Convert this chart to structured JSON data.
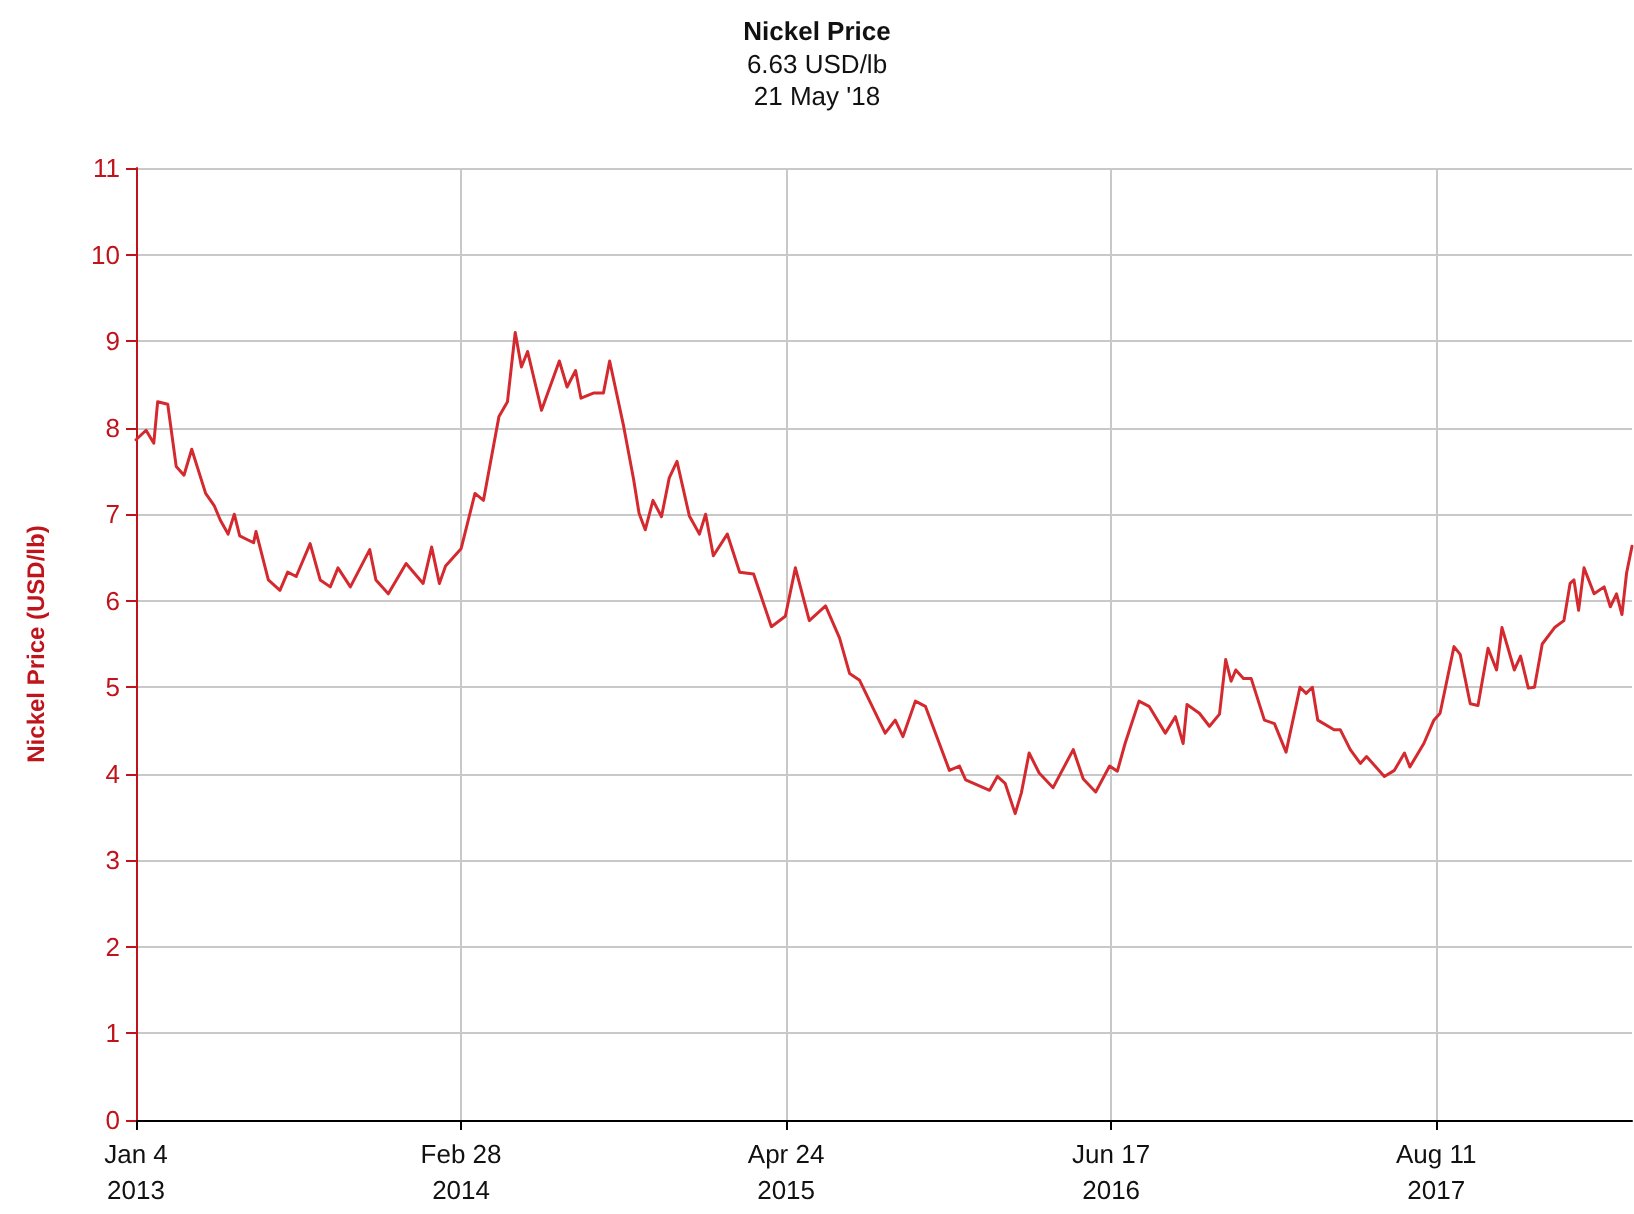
{
  "chart_data": {
    "type": "line",
    "title": "Nickel Price",
    "subtitle": "6.63 USD/lb\n21 May '18",
    "ylabel": "Nickel Price (USD/lb)",
    "xlim": [
      "2013-01-04",
      "2018-04-21"
    ],
    "xticks": [
      {
        "value": "2013-01-04",
        "label": "Jan 4\n2013"
      },
      {
        "value": "2014-02-28",
        "label": "Feb 28\n2014"
      },
      {
        "value": "2015-04-24",
        "label": "Apr 24\n2015"
      },
      {
        "value": "2016-06-17",
        "label": "Jun 17\n2016"
      },
      {
        "value": "2017-08-11",
        "label": "Aug 11\n2017"
      }
    ],
    "ylim": [
      0,
      11
    ],
    "yticks": [
      0,
      1,
      2,
      3,
      4,
      5,
      6,
      7,
      8,
      9,
      10,
      11
    ],
    "grid": true,
    "marker": "none",
    "line_style": "solid",
    "x": [
      "2013-01-04",
      "2013-01-17",
      "2013-01-27",
      "2013-02-01",
      "2013-02-14",
      "2013-02-25",
      "2013-03-07",
      "2013-03-17",
      "2013-04-04",
      "2013-04-15",
      "2013-04-23",
      "2013-05-03",
      "2013-05-11",
      "2013-05-18",
      "2013-06-05",
      "2013-06-08",
      "2013-06-24",
      "2013-07-09",
      "2013-07-19",
      "2013-07-30",
      "2013-08-17",
      "2013-08-30",
      "2013-09-12",
      "2013-09-22",
      "2013-10-08",
      "2013-11-02",
      "2013-11-10",
      "2013-11-26",
      "2013-12-19",
      "2014-01-10",
      "2014-01-21",
      "2014-01-31",
      "2014-02-08",
      "2014-02-28",
      "2014-03-18",
      "2014-03-29",
      "2014-04-18",
      "2014-04-29",
      "2014-05-09",
      "2014-05-17",
      "2014-05-25",
      "2014-06-12",
      "2014-07-05",
      "2014-07-15",
      "2014-07-26",
      "2014-08-02",
      "2014-08-18",
      "2014-08-31",
      "2014-09-08",
      "2014-09-26",
      "2014-10-09",
      "2014-10-16",
      "2014-10-24",
      "2014-11-03",
      "2014-11-14",
      "2014-11-24",
      "2014-12-04",
      "2014-12-20",
      "2015-01-02",
      "2015-01-10",
      "2015-01-20",
      "2015-02-07",
      "2015-02-23",
      "2015-03-13",
      "2015-04-05",
      "2015-04-23",
      "2015-05-06",
      "2015-05-24",
      "2015-06-14",
      "2015-07-02",
      "2015-07-15",
      "2015-07-28",
      "2015-08-30",
      "2015-09-12",
      "2015-09-22",
      "2015-10-08",
      "2015-10-21",
      "2015-11-21",
      "2015-12-04",
      "2015-12-12",
      "2016-01-12",
      "2016-01-22",
      "2016-02-01",
      "2016-02-14",
      "2016-02-22",
      "2016-03-03",
      "2016-03-16",
      "2016-04-03",
      "2016-04-29",
      "2016-05-12",
      "2016-05-28",
      "2016-06-15",
      "2016-06-25",
      "2016-07-05",
      "2016-07-23",
      "2016-08-05",
      "2016-08-26",
      "2016-09-08",
      "2016-09-18",
      "2016-09-23",
      "2016-10-09",
      "2016-10-22",
      "2016-11-04",
      "2016-11-12",
      "2016-11-19",
      "2016-11-25",
      "2016-12-05",
      "2016-12-15",
      "2017-01-01",
      "2017-01-14",
      "2017-01-29",
      "2017-02-16",
      "2017-02-24",
      "2017-03-04",
      "2017-03-11",
      "2017-04-01",
      "2017-04-09",
      "2017-04-22",
      "2017-05-05",
      "2017-05-13",
      "2017-06-05",
      "2017-06-18",
      "2017-07-01",
      "2017-07-08",
      "2017-07-26",
      "2017-08-08",
      "2017-08-16",
      "2017-09-03",
      "2017-09-11",
      "2017-09-24",
      "2017-10-04",
      "2017-10-17",
      "2017-10-28",
      "2017-11-04",
      "2017-11-20",
      "2017-11-28",
      "2017-12-08",
      "2017-12-16",
      "2017-12-26",
      "2018-01-11",
      "2018-01-23",
      "2018-01-31",
      "2018-02-05",
      "2018-02-11",
      "2018-02-18",
      "2018-03-03",
      "2018-03-16",
      "2018-03-24",
      "2018-04-01",
      "2018-04-08",
      "2018-04-14",
      "2018-04-21"
    ],
    "series": [
      {
        "color": "#d42a2f",
        "values": [
          7.86,
          7.97,
          7.82,
          8.3,
          8.27,
          7.55,
          7.45,
          7.75,
          7.24,
          7.1,
          6.93,
          6.77,
          7.0,
          6.75,
          6.67,
          6.8,
          6.24,
          6.12,
          6.33,
          6.28,
          6.66,
          6.24,
          6.16,
          6.38,
          6.16,
          6.59,
          6.24,
          6.08,
          6.43,
          6.2,
          6.62,
          6.2,
          6.4,
          6.6,
          7.24,
          7.16,
          8.13,
          8.3,
          9.1,
          8.7,
          8.88,
          8.2,
          8.77,
          8.47,
          8.66,
          8.34,
          8.4,
          8.4,
          8.77,
          8.02,
          7.4,
          7.01,
          6.82,
          7.16,
          6.97,
          7.42,
          7.61,
          6.98,
          6.77,
          7.0,
          6.52,
          6.77,
          6.33,
          6.31,
          5.7,
          5.82,
          6.38,
          5.77,
          5.94,
          5.57,
          5.16,
          5.08,
          4.47,
          4.62,
          4.43,
          4.84,
          4.78,
          4.04,
          4.09,
          3.93,
          3.81,
          3.97,
          3.89,
          3.54,
          3.78,
          4.24,
          4.01,
          3.84,
          4.28,
          3.94,
          3.79,
          4.09,
          4.03,
          4.35,
          4.84,
          4.78,
          4.47,
          4.66,
          4.35,
          4.8,
          4.7,
          4.55,
          4.69,
          5.32,
          5.07,
          5.2,
          5.1,
          5.1,
          4.62,
          4.58,
          4.25,
          5.0,
          4.93,
          5.0,
          4.62,
          4.51,
          4.51,
          4.28,
          4.12,
          4.2,
          3.97,
          4.04,
          4.24,
          4.08,
          4.35,
          4.62,
          4.7,
          5.47,
          5.38,
          4.81,
          4.79,
          5.45,
          5.2,
          5.69,
          5.2,
          5.36,
          4.99,
          5.0,
          5.5,
          5.69,
          5.77,
          6.2,
          6.24,
          5.89,
          6.38,
          6.08,
          6.16,
          5.93,
          6.08,
          5.84,
          6.32,
          6.63
        ]
      }
    ]
  }
}
